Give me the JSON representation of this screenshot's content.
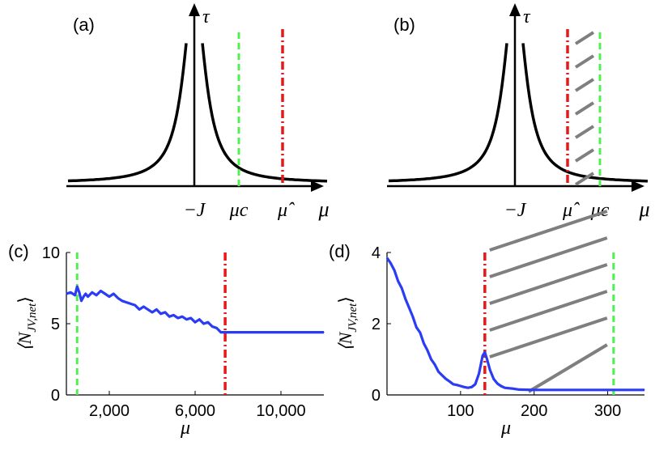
{
  "colors": {
    "curve": "#000000",
    "green": "#4ff04f",
    "red": "#e81818",
    "hatch": "#7f7f7f",
    "series": "#2b3cf5"
  },
  "chart_data": [
    {
      "panel": "(a)",
      "type": "line",
      "description_labels": {
        "yaxis": "τ",
        "xaxis": "μ"
      },
      "x_labels": {
        "minusJ": "−J",
        "mu_c": "μc",
        "mu_hat": "μ̂",
        "mu": "μ"
      },
      "curve": "Lorentzian peak centred at −J",
      "order": "mu_c < mu_hat",
      "hatched": false
    },
    {
      "panel": "(b)",
      "type": "line",
      "x_labels": {
        "minusJ": "−J",
        "mu_hat": "μ̂",
        "mu_c": "μc",
        "mu": "μ"
      },
      "curve": "Lorentzian peak centred at −J",
      "order": "mu_hat < mu_c",
      "hatched": true
    },
    {
      "panel": "(c)",
      "type": "line",
      "xlabel": "μ",
      "ylabel": "⟨N_JV,net⟩",
      "xlim": [
        0,
        12000
      ],
      "ylim": [
        0,
        10
      ],
      "xticks": [
        2000,
        6000,
        10000
      ],
      "xtick_labels": [
        "2,000",
        "6,000",
        "10,000"
      ],
      "yticks": [
        0,
        5,
        10
      ],
      "ytick_labels": [
        "0",
        "5",
        "10"
      ],
      "mu_c": 500,
      "mu_hat": 7400,
      "series": [
        {
          "name": "N_JV,net",
          "x": [
            0,
            200,
            400,
            500,
            600,
            700,
            800,
            900,
            1000,
            1200,
            1400,
            1600,
            1800,
            2000,
            2200,
            2400,
            2600,
            2800,
            3000,
            3200,
            3400,
            3600,
            3800,
            4000,
            4200,
            4400,
            4600,
            4800,
            5000,
            5200,
            5400,
            5600,
            5800,
            6000,
            6200,
            6400,
            6600,
            6800,
            7000,
            7200,
            7400,
            8000,
            9000,
            10000,
            11000,
            12000
          ],
          "y": [
            7.1,
            7.2,
            7.0,
            7.6,
            7.2,
            6.6,
            6.9,
            7.1,
            6.9,
            7.2,
            7.0,
            7.3,
            7.1,
            6.9,
            7.1,
            6.8,
            6.6,
            6.5,
            6.4,
            6.3,
            6.0,
            6.2,
            6.0,
            5.8,
            6.0,
            5.7,
            5.8,
            5.5,
            5.6,
            5.4,
            5.5,
            5.3,
            5.4,
            5.1,
            5.3,
            5.0,
            5.1,
            4.8,
            4.7,
            4.4,
            4.4,
            4.4,
            4.4,
            4.4,
            4.4,
            4.4
          ]
        }
      ]
    },
    {
      "panel": "(d)",
      "type": "line",
      "xlabel": "μ",
      "ylabel": "⟨N_JV,net⟩",
      "xlim": [
        0,
        350
      ],
      "ylim": [
        0,
        4
      ],
      "xticks": [
        100,
        200,
        300
      ],
      "xtick_labels": [
        "100",
        "200",
        "300"
      ],
      "yticks": [
        0,
        2,
        4
      ],
      "ytick_labels": [
        "0",
        "2",
        "4"
      ],
      "mu_hat": 133,
      "mu_c": 308,
      "series": [
        {
          "name": "N_JV,net",
          "x": [
            0,
            5,
            10,
            15,
            20,
            25,
            30,
            35,
            40,
            45,
            50,
            55,
            60,
            65,
            70,
            75,
            80,
            85,
            90,
            95,
            100,
            105,
            110,
            115,
            120,
            125,
            130,
            133,
            136,
            140,
            145,
            150,
            155,
            160,
            170,
            180,
            200,
            220,
            250,
            300,
            350
          ],
          "y": [
            3.85,
            3.7,
            3.5,
            3.2,
            3.0,
            2.7,
            2.45,
            2.2,
            1.9,
            1.75,
            1.45,
            1.25,
            1.0,
            0.85,
            0.65,
            0.55,
            0.45,
            0.38,
            0.3,
            0.28,
            0.25,
            0.22,
            0.2,
            0.22,
            0.3,
            0.6,
            1.1,
            1.2,
            1.0,
            0.7,
            0.45,
            0.32,
            0.25,
            0.2,
            0.18,
            0.15,
            0.14,
            0.14,
            0.14,
            0.14,
            0.14
          ]
        }
      ]
    }
  ]
}
